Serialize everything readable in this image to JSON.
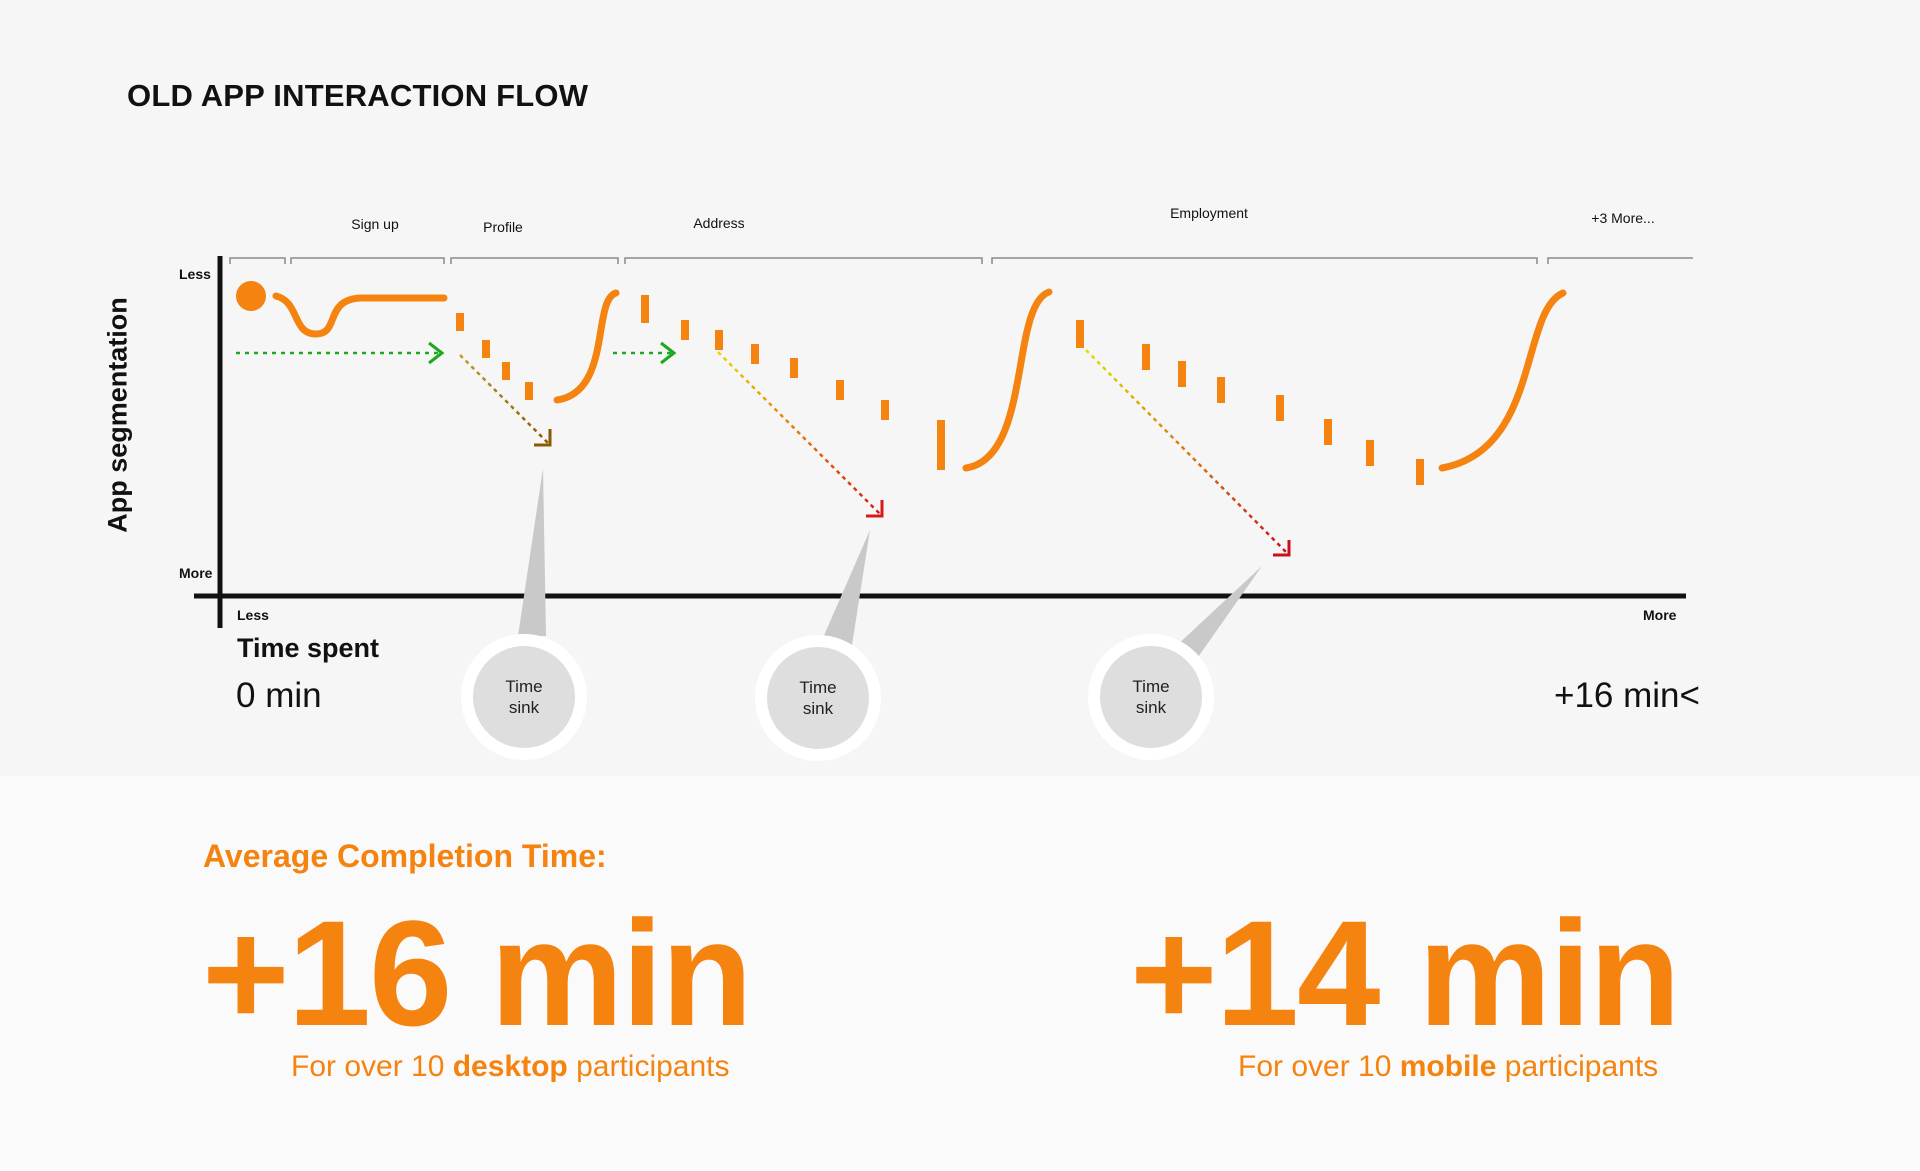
{
  "title": "OLD APP INTERACTION FLOW",
  "y_axis": {
    "title": "App segmentation",
    "top_label": "Less",
    "bottom_label": "More"
  },
  "x_axis": {
    "title": "Time spent",
    "left_label": "Less",
    "right_label": "More",
    "start_value": "0 min",
    "end_value": "+16 min<"
  },
  "segments": [
    {
      "label": ""
    },
    {
      "label": "Sign up"
    },
    {
      "label": "Profile"
    },
    {
      "label": "Address"
    },
    {
      "label": "Employment"
    },
    {
      "label": "+3 More..."
    }
  ],
  "time_sinks": [
    {
      "line1": "Time",
      "line2": "sink"
    },
    {
      "line1": "Time",
      "line2": "sink"
    },
    {
      "line1": "Time",
      "line2": "sink"
    }
  ],
  "summary": {
    "title": "Average Completion Time:",
    "separator": "/",
    "desktop": {
      "value": "+16 min",
      "prefix": "For over 10 ",
      "emphasis": "desktop",
      "suffix": " participants"
    },
    "mobile": {
      "value": "+14 min",
      "prefix": "For over 10 ",
      "emphasis": "mobile",
      "suffix": " participants"
    }
  },
  "colors": {
    "accent": "#f5830f",
    "flow_green": "#1fa81f",
    "arrow_brown": "#a8780a",
    "arrow_yellow_red": "#e0b000",
    "arrow_red": "#cc1020",
    "axis": "#111111",
    "bubble": "#dedede",
    "pointer": "#c9c9c9"
  }
}
